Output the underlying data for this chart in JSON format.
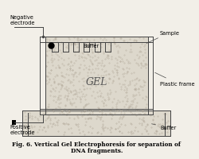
{
  "bg_color": "#f2efe8",
  "title_line1": "Fig. 6. Vertical Gel Electrophoresis for separation of",
  "title_line2": "DNA fragments.",
  "labels": {
    "negative_electrode": "Negative\nelectrode",
    "positive_electrode": "Positive\nelectrode",
    "buffer_top": "Buffer",
    "buffer_bottom": "Buffer",
    "sample": "Sample",
    "plastic_frame": "Plastic frame",
    "gel": "GEL"
  },
  "stipple_color": "#ddd8cc",
  "frame_color": "#444444",
  "lw": 0.7,
  "n_comb_teeth": 6
}
